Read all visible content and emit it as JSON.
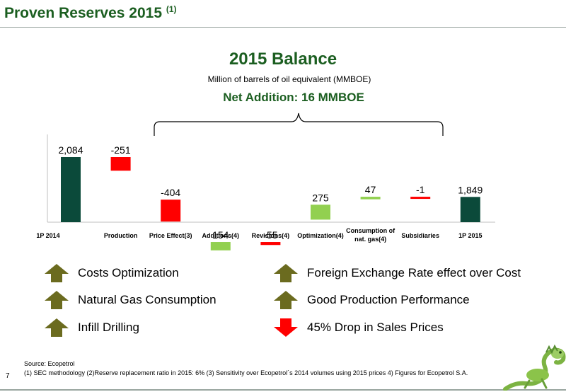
{
  "header": {
    "title": "Proven Reserves 2015",
    "title_note": "(1)"
  },
  "page_number": "7",
  "colors": {
    "total": "#0b4a3a",
    "decrease": "#ff0000",
    "increase": "#92d050",
    "brand": "#1b5e20",
    "arrow_up": "#6b6b1f",
    "arrow_down": "#ff0000"
  },
  "chart_data": {
    "type": "bar",
    "subtype": "waterfall",
    "title": "2015 Balance",
    "subtitle": "Million of barrels of oil equivalent (MMBOE)",
    "annotation": "Net Addition: 16 MMBOE",
    "categories": [
      "1P 2014",
      "Production",
      "Price Effect(3)",
      "Additions(4)",
      "Revisions(4)",
      "Optimization(4)",
      "Consumption of nat. gas(4)",
      "Subsidiaries",
      "1P 2015"
    ],
    "values": [
      2084,
      -251,
      -404,
      154,
      -55,
      275,
      47,
      -1,
      1849
    ],
    "value_labels": [
      "2,084",
      "-251",
      "-404",
      "154",
      "-55",
      "275",
      "47",
      "-1",
      "1,849"
    ],
    "kinds": [
      "total",
      "decrease",
      "decrease",
      "increase",
      "decrease",
      "increase",
      "increase",
      "decrease",
      "total"
    ],
    "xlabel": "",
    "ylabel": "",
    "grid": false,
    "legend": "none"
  },
  "drivers": [
    {
      "label": "Costs Optimization",
      "direction": "up",
      "icon": "up-arrow-icon"
    },
    {
      "label": "Natural Gas Consumption",
      "direction": "up",
      "icon": "up-arrow-icon"
    },
    {
      "label": "Infill Drilling",
      "direction": "up",
      "icon": "up-arrow-icon"
    },
    {
      "label": "Foreign Exchange Rate effect over Cost",
      "direction": "up",
      "icon": "up-arrow-icon"
    },
    {
      "label": "Good Production Performance",
      "direction": "up",
      "icon": "up-arrow-icon"
    },
    {
      "label": "45% Drop in Sales Prices",
      "direction": "down",
      "icon": "down-arrow-icon"
    }
  ],
  "footer": {
    "source": "Source: Ecopetrol",
    "notes": "(1) SEC methodology (2)Reserve replacement ratio in 2015: 6%    (3) Sensitivity over Ecopetrol´s 2014 volumes using 2015 prices    4) Figures for Ecopetrol S.A."
  }
}
